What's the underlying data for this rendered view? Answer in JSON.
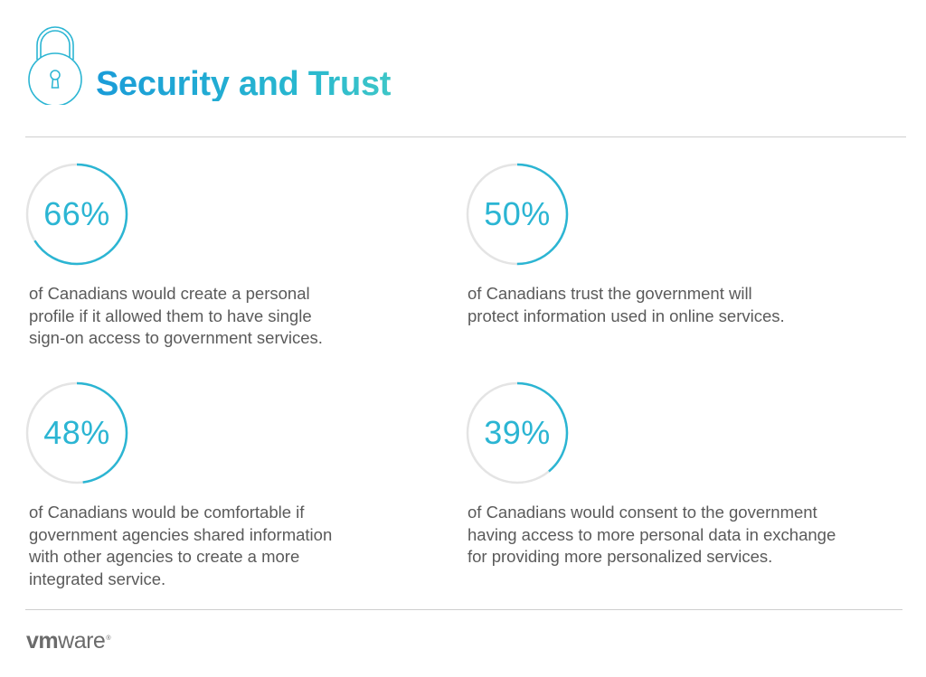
{
  "title": "Security and Trust",
  "colors": {
    "accent": "#2bb5d3",
    "ring_track": "#e4e4e4",
    "text": "#5a5a5a",
    "rule": "#cfcfcf"
  },
  "stats": [
    {
      "value": 66,
      "label": "66%",
      "text": "of Canadians would create a personal\nprofile if it allowed them to have single\nsign-on access to government services."
    },
    {
      "value": 50,
      "label": "50%",
      "text": "of Canadians trust the government will\nprotect information used in online services."
    },
    {
      "value": 48,
      "label": "48%",
      "text": "of Canadians would be comfortable if\ngovernment agencies shared information\nwith other agencies to create a more\nintegrated service."
    },
    {
      "value": 39,
      "label": "39%",
      "text": "of Canadians would consent to the government\nhaving access to more personal data in exchange\nfor providing more personalized services."
    }
  ],
  "logo": {
    "vm": "vm",
    "ware": "ware",
    "tm": "®"
  }
}
